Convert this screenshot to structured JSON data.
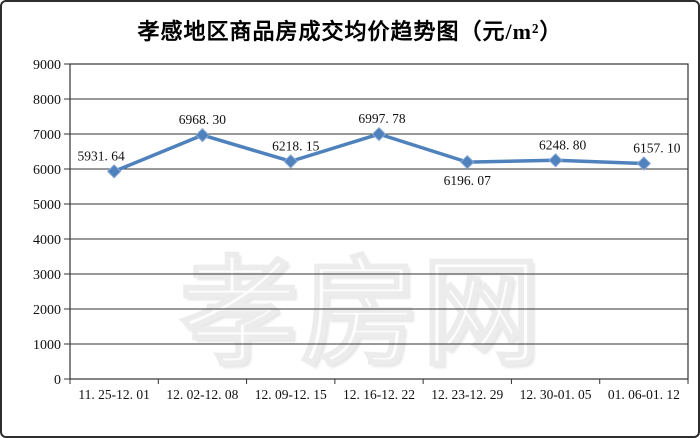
{
  "window": {
    "background": "#ffffff",
    "border_color": "#2e2e2e"
  },
  "chart": {
    "title": "孝感地区商品房成交均价趋势图（元/m²）",
    "watermark_text": "孝房网",
    "line_color": "#4f81bd",
    "grid_color": "#333333",
    "text_color": "#111111",
    "y_tick_labels": [
      "0",
      "1000",
      "2000",
      "3000",
      "4000",
      "5000",
      "6000",
      "7000",
      "8000",
      "9000"
    ],
    "x_tick_labels": [
      "11. 25-12. 01",
      "12. 02-12. 08",
      "12. 09-12. 15",
      "12. 16-12. 22",
      "12. 23-12. 29",
      "12. 30-01. 05",
      "01. 06-01. 12"
    ],
    "point_labels": [
      "5931. 64",
      "6968. 30",
      "6218. 15",
      "6997. 78",
      "6196. 07",
      "6248. 80",
      "6157. 10"
    ]
  },
  "chart_data": {
    "type": "line",
    "title": "孝感地区商品房成交均价趋势图（元/m²）",
    "categories": [
      "11.25-12.01",
      "12.02-12.08",
      "12.09-12.15",
      "12.16-12.22",
      "12.23-12.29",
      "12.30-01.05",
      "01.06-01.12"
    ],
    "values": [
      5931.64,
      6968.3,
      6218.15,
      6997.78,
      6196.07,
      6248.8,
      6157.1
    ],
    "xlabel": "",
    "ylabel": "",
    "ylim": [
      0,
      9000
    ],
    "ytick_step": 1000,
    "grid": "horizontal",
    "legend_position": "none",
    "marker": "diamond",
    "line_color": "#4f81bd",
    "label_positions": [
      "above",
      "above",
      "above",
      "above",
      "below",
      "above",
      "above"
    ]
  }
}
